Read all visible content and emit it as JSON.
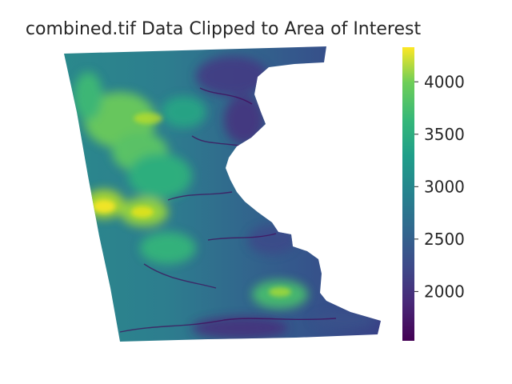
{
  "title": "combined.tif Data Clipped to Area of Interest",
  "colorbar": {
    "colormap": "viridis",
    "range": [
      1530,
      4330
    ],
    "ticks": [
      "2000",
      "2500",
      "3000",
      "3500",
      "4000"
    ],
    "tick_values": [
      2000,
      2500,
      3000,
      3500,
      4000
    ]
  },
  "colors": {
    "low": "#440154",
    "mid": "#21918c",
    "high": "#fde725",
    "text": "#262626"
  }
}
